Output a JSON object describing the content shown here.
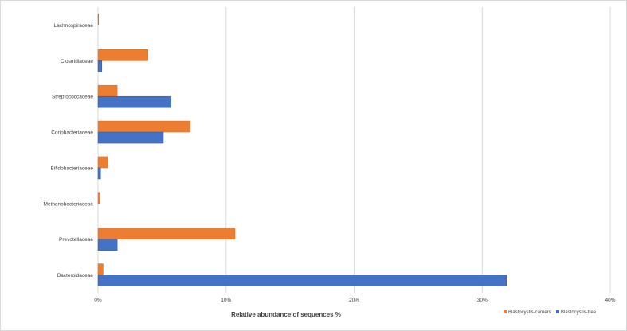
{
  "chart_data": {
    "type": "bar",
    "orientation": "horizontal",
    "categories": [
      "Bacteroidaceae",
      "Prevotellaceae",
      "Methanobacteriaceae",
      "Bifidobacteriaceae",
      "Coriobacteriaceae",
      "Streptococcaceae",
      "Clostridiaceae",
      "Lachnospiraceae"
    ],
    "series": [
      {
        "name": "Blastocystis-carriers",
        "color": "#ed7d31",
        "values": [
          0.4,
          10.7,
          0.15,
          0.75,
          7.2,
          1.5,
          3.9,
          0.05
        ]
      },
      {
        "name": "Blastocystis-free",
        "color": "#4472c4",
        "values": [
          31.9,
          1.5,
          0.0,
          0.2,
          5.1,
          5.7,
          0.3,
          0.0
        ]
      }
    ],
    "xlim": [
      0,
      40
    ],
    "x_ticks": [
      "0%",
      "10%",
      "20%",
      "30%",
      "40%"
    ],
    "xlabel": "Relative abundance  of sequences %",
    "ylabel": "",
    "title": "",
    "grid": true,
    "legend_position": "bottom-right"
  }
}
